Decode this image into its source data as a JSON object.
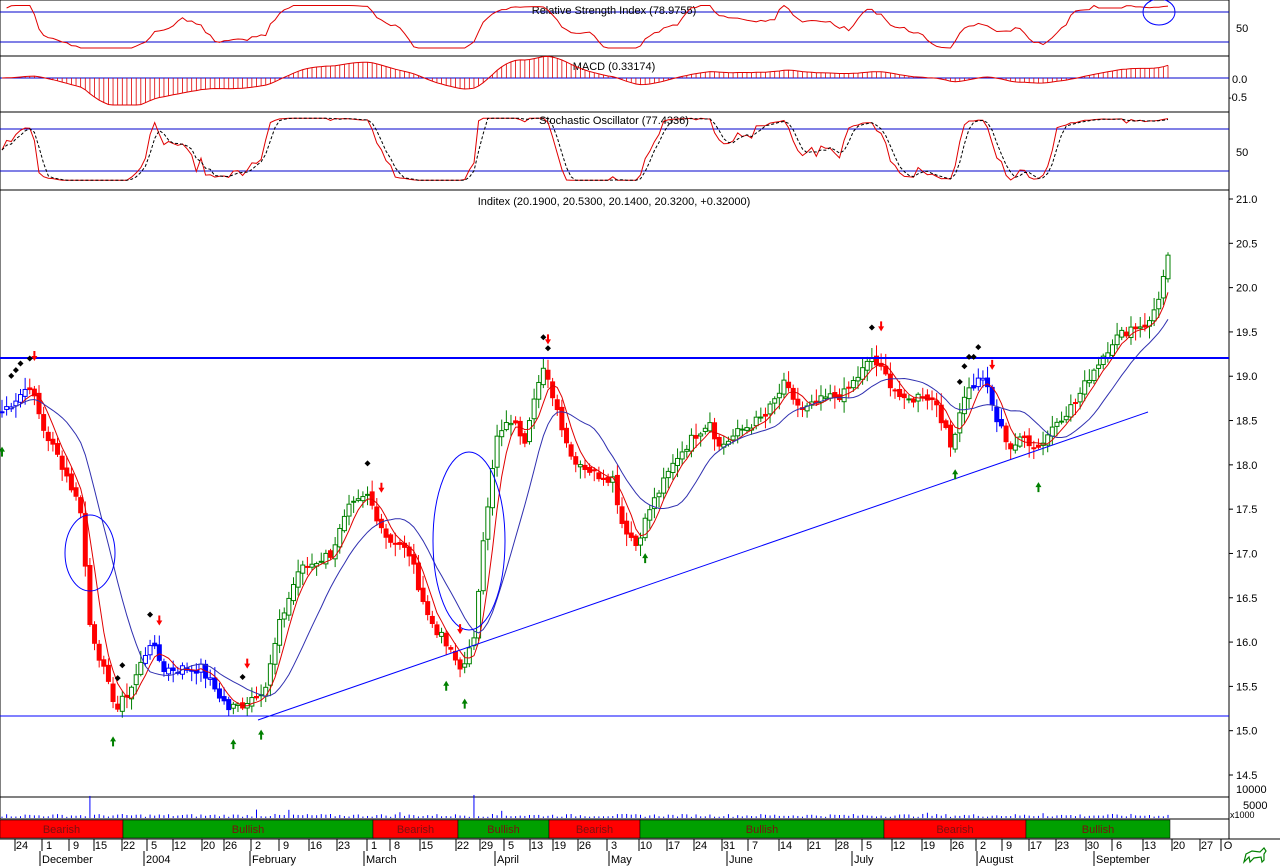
{
  "chart_data": {
    "type": "candlestick",
    "instrument": "Inditex",
    "price_label": "Inditex (20.1900, 20.5300, 20.1400, 20.3200, +0.32000)",
    "last_bar": {
      "open": 20.19,
      "high": 20.53,
      "low": 20.14,
      "close": 20.32,
      "change": 0.32
    },
    "price_axis": {
      "ylim": [
        14.5,
        21.0
      ],
      "ticks": [
        "21.0",
        "20.5",
        "20.0",
        "19.5",
        "19.0",
        "18.5",
        "18.0",
        "17.5",
        "17.0",
        "16.5",
        "16.0",
        "15.5",
        "15.0",
        "14.5"
      ]
    },
    "indicators": {
      "rsi": {
        "label": "Relative Strength Index (78.9755)",
        "value": 78.9755,
        "ticks": [
          "50"
        ],
        "levels": [
          70,
          30
        ]
      },
      "macd": {
        "label": "MACD (0.33174)",
        "value": 0.33174,
        "ticks": [
          "0.0",
          "-0.5"
        ]
      },
      "stochastic": {
        "label": "Stochastic Oscillator (77.4336)",
        "value": 77.4336,
        "ticks": [
          "50"
        ],
        "levels": [
          80,
          20
        ]
      }
    },
    "volume_axis": {
      "ticks": [
        "10000",
        "5000",
        "x1000"
      ]
    },
    "x_axis": {
      "day_ticks": [
        "24",
        "1",
        "9",
        "15",
        "22",
        "5",
        "12",
        "20",
        "26",
        "2",
        "9",
        "16",
        "23",
        "1",
        "8",
        "15",
        "22",
        "29",
        "5",
        "13",
        "19",
        "26",
        "3",
        "10",
        "17",
        "24",
        "31",
        "7",
        "14",
        "21",
        "28",
        "5",
        "12",
        "19",
        "26",
        "2",
        "9",
        "17",
        "23",
        "30",
        "6",
        "13",
        "20",
        "27",
        "O"
      ],
      "months": [
        "December",
        "2004",
        "February",
        "March",
        "April",
        "May",
        "June",
        "July",
        "August",
        "September"
      ]
    },
    "trend_bands": [
      {
        "label": "Bearish",
        "color": "#ff0000"
      },
      {
        "label": "Bullish",
        "color": "#00a000"
      },
      {
        "label": "Bearish",
        "color": "#ff0000"
      },
      {
        "label": "Bullish",
        "color": "#00a000"
      },
      {
        "label": "Bearish",
        "color": "#ff0000"
      },
      {
        "label": "Bullish",
        "color": "#00a000"
      },
      {
        "label": "Bearish",
        "color": "#ff0000"
      },
      {
        "label": "Bullish",
        "color": "#00a000"
      }
    ],
    "price_keyframes": [
      [
        0,
        18.6
      ],
      [
        6,
        18.9
      ],
      [
        9,
        18.4
      ],
      [
        13,
        18.0
      ],
      [
        17,
        17.5
      ],
      [
        19,
        16.2
      ],
      [
        23,
        15.5
      ],
      [
        25,
        15.25
      ],
      [
        28,
        15.5
      ],
      [
        32,
        16.0
      ],
      [
        35,
        15.7
      ],
      [
        43,
        15.7
      ],
      [
        49,
        15.25
      ],
      [
        52,
        15.3
      ],
      [
        57,
        15.5
      ],
      [
        60,
        16.2
      ],
      [
        64,
        16.8
      ],
      [
        71,
        17.0
      ],
      [
        75,
        17.5
      ],
      [
        79,
        17.65
      ],
      [
        83,
        17.2
      ],
      [
        88,
        17.0
      ],
      [
        92,
        16.3
      ],
      [
        95,
        16.05
      ],
      [
        99,
        15.7
      ],
      [
        102,
        16.0
      ],
      [
        104,
        17.2
      ],
      [
        107,
        18.3
      ],
      [
        110,
        18.5
      ],
      [
        113,
        18.3
      ],
      [
        115,
        18.8
      ],
      [
        117,
        19.05
      ],
      [
        119,
        18.8
      ],
      [
        123,
        18.1
      ],
      [
        128,
        17.9
      ],
      [
        132,
        17.85
      ],
      [
        134,
        17.35
      ],
      [
        137,
        17.1
      ],
      [
        140,
        17.5
      ],
      [
        143,
        17.8
      ],
      [
        146,
        18.1
      ],
      [
        150,
        18.35
      ],
      [
        153,
        18.5
      ],
      [
        155,
        18.2
      ],
      [
        160,
        18.4
      ],
      [
        165,
        18.55
      ],
      [
        169,
        18.9
      ],
      [
        173,
        18.6
      ],
      [
        178,
        18.75
      ],
      [
        182,
        18.8
      ],
      [
        188,
        19.2
      ],
      [
        191,
        19.0
      ],
      [
        195,
        18.7
      ],
      [
        199,
        18.8
      ],
      [
        202,
        18.7
      ],
      [
        205,
        18.2
      ],
      [
        208,
        18.8
      ],
      [
        212,
        19.0
      ],
      [
        215,
        18.5
      ],
      [
        218,
        18.2
      ],
      [
        221,
        18.3
      ],
      [
        224,
        18.2
      ],
      [
        228,
        18.5
      ],
      [
        232,
        18.7
      ],
      [
        235,
        19.0
      ],
      [
        240,
        19.4
      ],
      [
        244,
        19.55
      ],
      [
        248,
        19.6
      ],
      [
        250,
        19.9
      ],
      [
        252,
        20.32
      ]
    ],
    "volume_spikes": [
      [
        19,
        0.92
      ],
      [
        102,
        0.96
      ],
      [
        55,
        0.35
      ],
      [
        62,
        0.34
      ],
      [
        86,
        0.24
      ],
      [
        108,
        0.3
      ],
      [
        200,
        0.22
      ],
      [
        225,
        0.2
      ]
    ]
  }
}
